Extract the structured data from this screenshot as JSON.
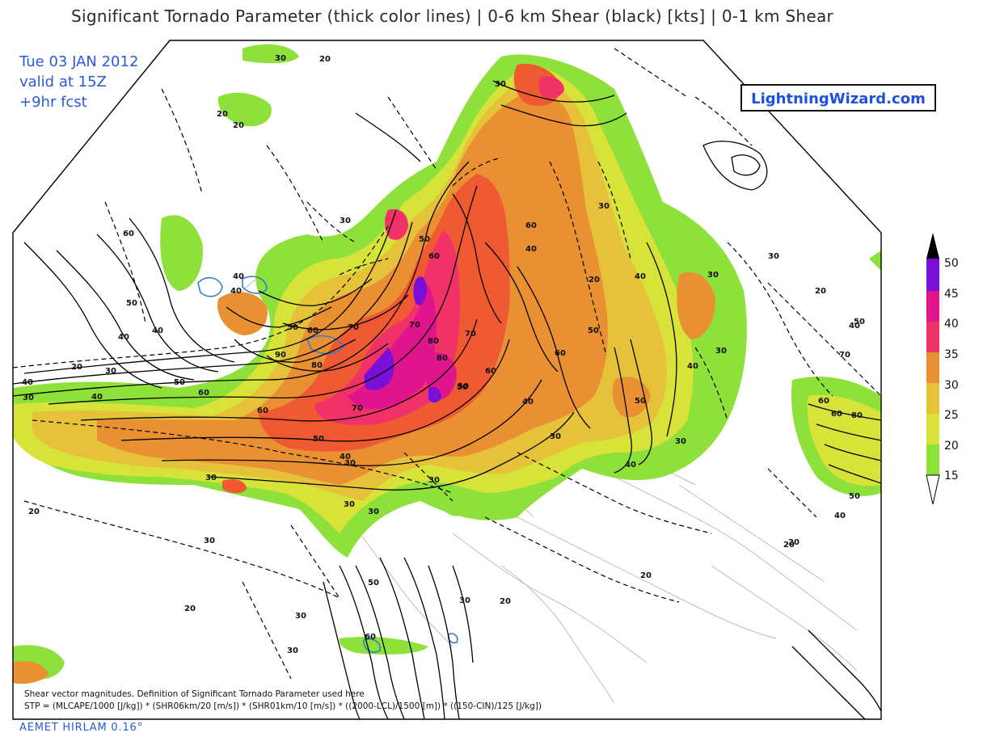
{
  "header": {
    "title": "Significant Tornado Parameter (thick color lines) | 0-6 km Shear (black) [kts] | 0-1 km Shear",
    "date": "Tue 03 JAN 2012",
    "valid": "valid at 15Z",
    "forecast": "+9hr fcst"
  },
  "logo": {
    "text": "LightningWizard.com"
  },
  "footer": {
    "model": "AEMET HIRLAM 0.16°",
    "note": "Shear vector magnitudes. Definition of Significant Tornado Parameter used here",
    "formula": "STP = (MLCAPE/1000 [J/kg]) * (SHR06km/20 [m/s]) * (SHR01km/10 [m/s]) * ((2000-LCL)/1500 [m]) * ((150-CIN)/125 [J/kg])"
  },
  "legend": {
    "levels": [
      "50",
      "45",
      "40",
      "35",
      "30",
      "25",
      "20",
      "15"
    ],
    "colors": {
      "15": "#8ee03a",
      "20": "#d8e33a",
      "25": "#e6c23a",
      "30": "#e89032",
      "35": "#f05a32",
      "40": "#f03268",
      "45": "#e0148c",
      "50": "#7a0fd8",
      "top": "#000000"
    }
  },
  "map": {
    "contour_labels": [
      "30",
      "20",
      "20",
      "20",
      "30",
      "60",
      "50",
      "40",
      "40",
      "30",
      "40",
      "50",
      "60",
      "40",
      "30",
      "50",
      "60",
      "80",
      "90",
      "70",
      "70",
      "80",
      "60",
      "50",
      "40",
      "50",
      "60",
      "70",
      "80",
      "70",
      "60",
      "50",
      "40",
      "30",
      "30",
      "40",
      "60",
      "50",
      "40",
      "30",
      "20",
      "30",
      "20",
      "40",
      "30",
      "30",
      "40",
      "50",
      "60",
      "70",
      "80",
      "50",
      "40",
      "30",
      "20",
      "20",
      "30",
      "30",
      "50",
      "60",
      "30",
      "40",
      "50",
      "30",
      "60",
      "40",
      "40",
      "30",
      "20",
      "20",
      "30",
      "30",
      "50",
      "60",
      "30",
      "20",
      "30",
      "20",
      "20"
    ]
  }
}
